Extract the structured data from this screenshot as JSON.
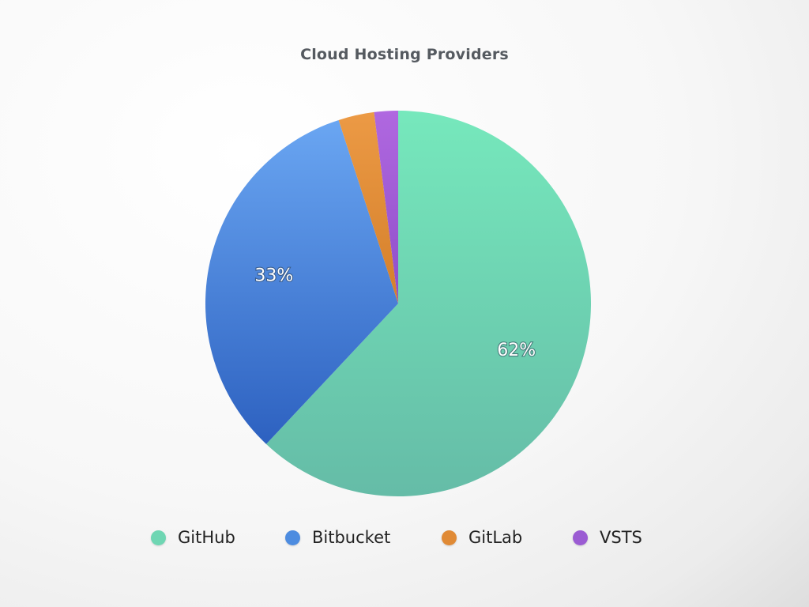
{
  "chart_data": {
    "type": "pie",
    "title": "Cloud Hosting Providers",
    "legend_position": "bottom",
    "slices": [
      {
        "name": "GitHub",
        "value": 62,
        "label": "62%",
        "color": "#6fd6b3"
      },
      {
        "name": "Bitbucket",
        "value": 33,
        "label": "33%",
        "color": "#4d8ce0"
      },
      {
        "name": "GitLab",
        "value": 3,
        "label": "",
        "color": "#e08a35"
      },
      {
        "name": "VSTS",
        "value": 2,
        "label": "",
        "color": "#9b5cd3"
      }
    ]
  }
}
